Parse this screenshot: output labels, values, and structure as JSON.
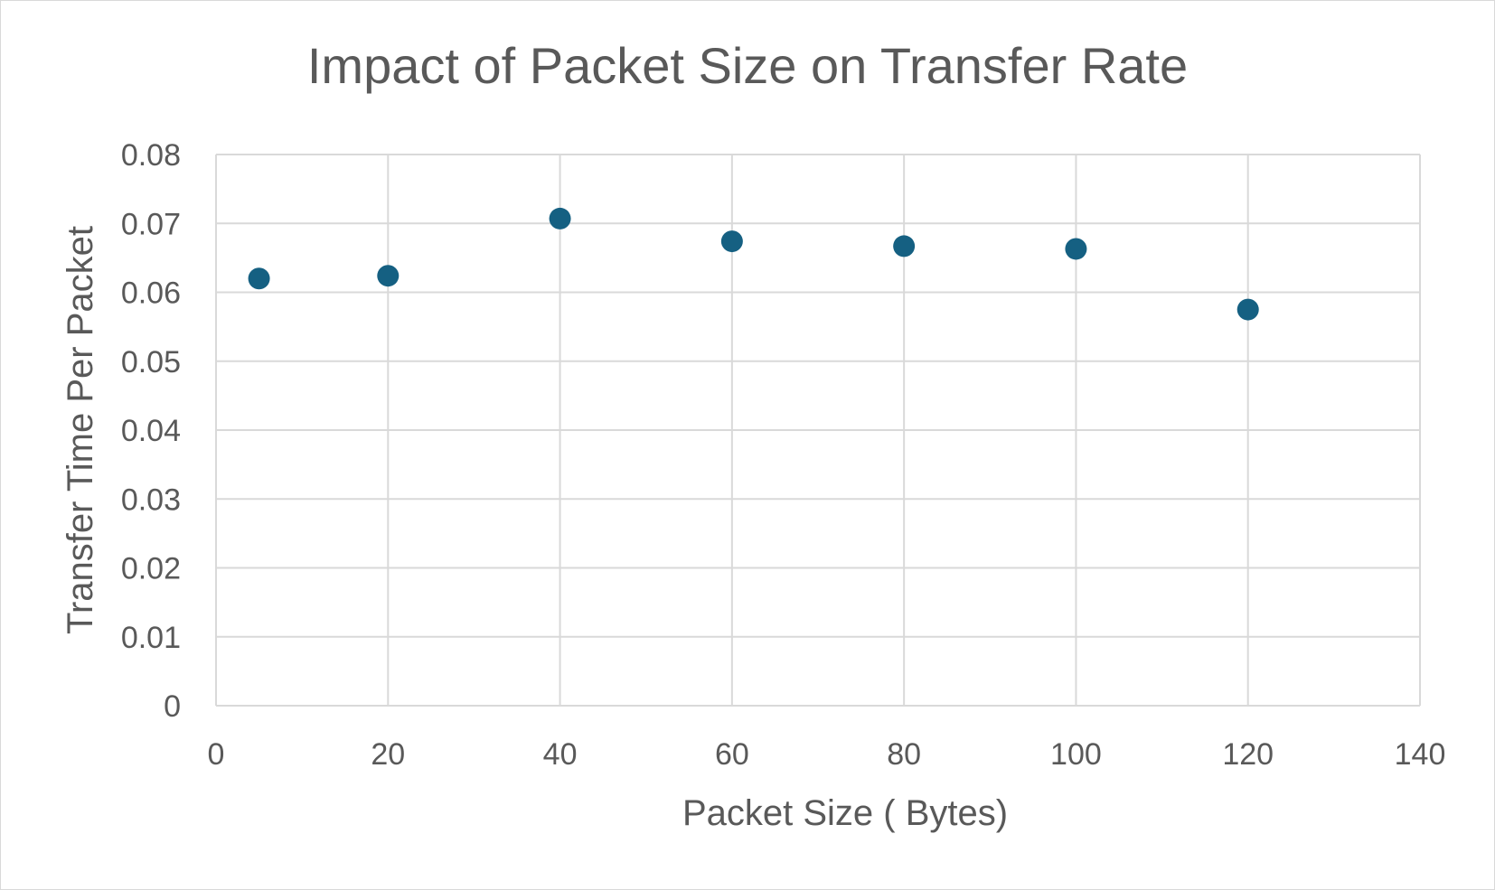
{
  "chart_data": {
    "type": "scatter",
    "title": "Impact of Packet Size on Transfer Rate",
    "xlabel": "Packet Size ( Bytes)",
    "ylabel": "Transfer Time Per Packet",
    "xlim": [
      0,
      140
    ],
    "ylim": [
      0,
      0.08
    ],
    "x_ticks": [
      "0",
      "20",
      "40",
      "60",
      "80",
      "100",
      "120",
      "140"
    ],
    "y_ticks": [
      "0",
      "0.01",
      "0.02",
      "0.03",
      "0.04",
      "0.05",
      "0.06",
      "0.07",
      "0.08"
    ],
    "grid": true,
    "legend": "none",
    "series": [
      {
        "color": "#156082",
        "x": [
          5,
          20,
          40,
          60,
          80,
          100,
          120
        ],
        "y": [
          0.062,
          0.0624,
          0.0707,
          0.0674,
          0.0667,
          0.0663,
          0.0575
        ]
      }
    ]
  },
  "colors": {
    "grid": "#d9d9d9",
    "text": "#595959",
    "marker": "#156082"
  }
}
